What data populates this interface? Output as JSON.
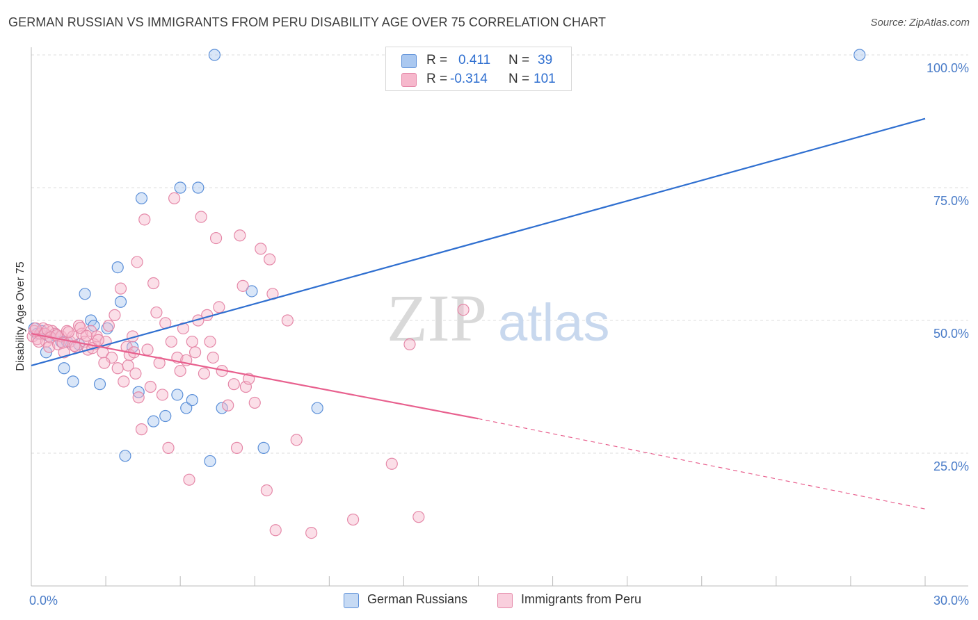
{
  "title": "GERMAN RUSSIAN VS IMMIGRANTS FROM PERU DISABILITY AGE OVER 75 CORRELATION CHART",
  "source": "Source: ZipAtlas.com",
  "watermark": {
    "zip": "ZIP",
    "atlas": "atlas"
  },
  "colors": {
    "blue_fill": "#aac8f0",
    "blue_stroke": "#5b8fd8",
    "blue_line": "#2f6fd0",
    "pink_fill": "#f6b8cc",
    "pink_stroke": "#e588a8",
    "pink_line": "#e8608e",
    "tick_text": "#4a7cc8",
    "grid": "#dddddd"
  },
  "stats": {
    "rows": [
      {
        "r_label": "R =",
        "r_value": "0.411",
        "n_label": "N =",
        "n_value": "39"
      },
      {
        "r_label": "R =",
        "r_value": "-0.314",
        "n_label": "N =",
        "n_value": "101"
      }
    ]
  },
  "legend": [
    {
      "label": "German Russians"
    },
    {
      "label": "Immigrants from Peru"
    }
  ],
  "chart_data": {
    "type": "scatter",
    "title": "GERMAN RUSSIAN VS IMMIGRANTS FROM PERU DISABILITY AGE OVER 75 CORRELATION CHART",
    "xlabel": "",
    "ylabel": "Disability Age Over 75",
    "xlim": [
      0,
      30
    ],
    "ylim": [
      0,
      100
    ],
    "x_tick_labels": [
      "0.0%",
      "30.0%"
    ],
    "y_tick_labels": [
      "25.0%",
      "50.0%",
      "75.0%",
      "100.0%"
    ],
    "y_ticks": [
      25,
      50,
      75,
      100
    ],
    "grid": true,
    "legend_position": "bottom-center",
    "series": [
      {
        "name": "German Russians",
        "color": "#5b8fd8",
        "trend": {
          "x": [
            0,
            30
          ],
          "y": [
            41.5,
            88
          ]
        },
        "points": [
          [
            0.1,
            48.5
          ],
          [
            0.2,
            47.5
          ],
          [
            0.35,
            48
          ],
          [
            0.5,
            44
          ],
          [
            0.6,
            47
          ],
          [
            0.8,
            47.5
          ],
          [
            1.0,
            46
          ],
          [
            1.1,
            41
          ],
          [
            1.2,
            46
          ],
          [
            1.4,
            38.5
          ],
          [
            1.6,
            45.5
          ],
          [
            1.8,
            55
          ],
          [
            2.0,
            50
          ],
          [
            2.1,
            49
          ],
          [
            2.3,
            38
          ],
          [
            2.55,
            48.5
          ],
          [
            2.9,
            60
          ],
          [
            3.0,
            53.5
          ],
          [
            3.15,
            24.5
          ],
          [
            3.4,
            45
          ],
          [
            3.6,
            36.5
          ],
          [
            3.7,
            73
          ],
          [
            4.1,
            31
          ],
          [
            4.5,
            32
          ],
          [
            4.9,
            36
          ],
          [
            5.0,
            75
          ],
          [
            5.2,
            33.5
          ],
          [
            5.4,
            35
          ],
          [
            5.6,
            75
          ],
          [
            6.0,
            23.5
          ],
          [
            6.15,
            100
          ],
          [
            6.4,
            33.5
          ],
          [
            7.4,
            55.5
          ],
          [
            7.8,
            26
          ],
          [
            9.6,
            33.5
          ],
          [
            27.8,
            100
          ]
        ]
      },
      {
        "name": "Immigrants from Peru",
        "color": "#e588a8",
        "trend": {
          "x": [
            0,
            15
          ],
          "y": [
            47.5,
            31.5
          ],
          "dashed_to": {
            "x": 30,
            "y": 14.5
          }
        },
        "points": [
          [
            0.05,
            47
          ],
          [
            0.1,
            48
          ],
          [
            0.2,
            46.5
          ],
          [
            0.3,
            47.5
          ],
          [
            0.4,
            48.5
          ],
          [
            0.5,
            46
          ],
          [
            0.6,
            45
          ],
          [
            0.7,
            48
          ],
          [
            0.8,
            47.5
          ],
          [
            0.9,
            45.5
          ],
          [
            1.0,
            47
          ],
          [
            1.1,
            44
          ],
          [
            1.2,
            48
          ],
          [
            1.3,
            46
          ],
          [
            1.4,
            47
          ],
          [
            1.5,
            45
          ],
          [
            1.6,
            49
          ],
          [
            1.7,
            47.5
          ],
          [
            1.8,
            46
          ],
          [
            1.9,
            44.5
          ],
          [
            2.0,
            48
          ],
          [
            2.1,
            45.5
          ],
          [
            2.2,
            47
          ],
          [
            2.4,
            44
          ],
          [
            2.5,
            46
          ],
          [
            2.6,
            49
          ],
          [
            2.7,
            43
          ],
          [
            2.8,
            51
          ],
          [
            2.9,
            41
          ],
          [
            3.0,
            56
          ],
          [
            3.1,
            38.5
          ],
          [
            3.2,
            45
          ],
          [
            3.3,
            43.5
          ],
          [
            3.4,
            47
          ],
          [
            3.5,
            40
          ],
          [
            3.55,
            61
          ],
          [
            3.6,
            35.5
          ],
          [
            3.7,
            29.5
          ],
          [
            3.8,
            69
          ],
          [
            3.9,
            44.5
          ],
          [
            4.0,
            37.5
          ],
          [
            4.1,
            57
          ],
          [
            4.2,
            51.5
          ],
          [
            4.3,
            42
          ],
          [
            4.4,
            36
          ],
          [
            4.5,
            49.5
          ],
          [
            4.6,
            26
          ],
          [
            4.7,
            46
          ],
          [
            4.8,
            73
          ],
          [
            4.9,
            43
          ],
          [
            5.0,
            40.5
          ],
          [
            5.1,
            48.5
          ],
          [
            5.2,
            42.5
          ],
          [
            5.3,
            20
          ],
          [
            5.4,
            46
          ],
          [
            5.5,
            44
          ],
          [
            5.6,
            50
          ],
          [
            5.7,
            69.5
          ],
          [
            5.8,
            40
          ],
          [
            5.9,
            51
          ],
          [
            6.0,
            46
          ],
          [
            6.1,
            43
          ],
          [
            6.2,
            65.5
          ],
          [
            6.3,
            52.5
          ],
          [
            6.4,
            40.5
          ],
          [
            6.6,
            34
          ],
          [
            6.8,
            38
          ],
          [
            6.9,
            26
          ],
          [
            7.0,
            66
          ],
          [
            7.1,
            56.5
          ],
          [
            7.2,
            37.5
          ],
          [
            7.3,
            39
          ],
          [
            7.5,
            34.5
          ],
          [
            7.7,
            63.5
          ],
          [
            7.9,
            18
          ],
          [
            8.0,
            61.5
          ],
          [
            8.1,
            55
          ],
          [
            8.2,
            10.5
          ],
          [
            8.6,
            50
          ],
          [
            8.9,
            27.5
          ],
          [
            9.4,
            10
          ],
          [
            10.8,
            12.5
          ],
          [
            12.1,
            23
          ],
          [
            12.7,
            45.5
          ],
          [
            13.0,
            13
          ],
          [
            14.5,
            52
          ],
          [
            0.15,
            48.5
          ],
          [
            0.25,
            46
          ],
          [
            0.45,
            47.5
          ],
          [
            0.55,
            48.2
          ],
          [
            0.65,
            46.8
          ],
          [
            0.85,
            47.2
          ],
          [
            1.05,
            45.8
          ],
          [
            1.25,
            47.8
          ],
          [
            1.45,
            45.2
          ],
          [
            1.65,
            48.6
          ],
          [
            1.85,
            47.1
          ],
          [
            2.05,
            44.8
          ],
          [
            2.25,
            46.3
          ],
          [
            2.45,
            42
          ],
          [
            3.25,
            41.5
          ],
          [
            3.45,
            44
          ]
        ]
      }
    ]
  }
}
